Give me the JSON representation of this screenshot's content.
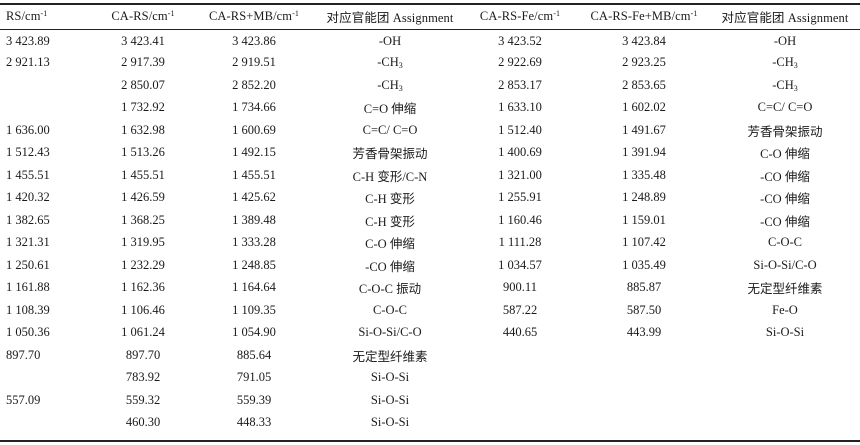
{
  "table": {
    "headers": [
      {
        "base": "RS/cm",
        "sup": "-1"
      },
      {
        "base": "CA-RS/cm",
        "sup": "-1"
      },
      {
        "base": "CA-RS+MB/cm",
        "sup": "-1"
      },
      {
        "base": "对应官能团 Assignment",
        "sup": ""
      },
      {
        "base": "CA-RS-Fe/cm",
        "sup": "-1"
      },
      {
        "base": "CA-RS-Fe+MB/cm",
        "sup": "-1"
      },
      {
        "base": "对应官能团 Assignment",
        "sup": ""
      }
    ],
    "rows": [
      [
        {
          "t": "3 423.89"
        },
        {
          "t": "3 423.41"
        },
        {
          "t": "3 423.86"
        },
        {
          "t": "-OH"
        },
        {
          "t": "3 423.52"
        },
        {
          "t": "3 423.84"
        },
        {
          "t": "-OH"
        }
      ],
      [
        {
          "t": "2 921.13"
        },
        {
          "t": "2 917.39"
        },
        {
          "t": "2 919.51"
        },
        {
          "t": "-CH",
          "sub": "3"
        },
        {
          "t": "2 922.69"
        },
        {
          "t": "2 923.25"
        },
        {
          "t": "-CH",
          "sub": "3"
        }
      ],
      [
        {
          "t": ""
        },
        {
          "t": "2 850.07"
        },
        {
          "t": "2 852.20"
        },
        {
          "t": "-CH",
          "sub": "3"
        },
        {
          "t": "2 853.17"
        },
        {
          "t": "2 853.65"
        },
        {
          "t": "-CH",
          "sub": "3"
        }
      ],
      [
        {
          "t": ""
        },
        {
          "t": "1 732.92"
        },
        {
          "t": "1 734.66"
        },
        {
          "t": "C=O 伸缩"
        },
        {
          "t": "1 633.10"
        },
        {
          "t": "1 602.02"
        },
        {
          "t": "C=C/ C=O"
        }
      ],
      [
        {
          "t": "1 636.00"
        },
        {
          "t": "1 632.98"
        },
        {
          "t": "1 600.69"
        },
        {
          "t": "C=C/ C=O"
        },
        {
          "t": "1 512.40"
        },
        {
          "t": "1 491.67"
        },
        {
          "t": "芳香骨架振动"
        }
      ],
      [
        {
          "t": "1 512.43"
        },
        {
          "t": "1 513.26"
        },
        {
          "t": "1 492.15"
        },
        {
          "t": "芳香骨架振动"
        },
        {
          "t": "1 400.69"
        },
        {
          "t": "1 391.94"
        },
        {
          "t": "C-O 伸缩"
        }
      ],
      [
        {
          "t": "1 455.51"
        },
        {
          "t": "1 455.51"
        },
        {
          "t": "1 455.51"
        },
        {
          "t": "C-H 变形/C-N"
        },
        {
          "t": "1 321.00"
        },
        {
          "t": "1 335.48"
        },
        {
          "t": "-CO 伸缩"
        }
      ],
      [
        {
          "t": "1 420.32"
        },
        {
          "t": "1 426.59"
        },
        {
          "t": "1 425.62"
        },
        {
          "t": "C-H 变形"
        },
        {
          "t": "1 255.91"
        },
        {
          "t": "1 248.89"
        },
        {
          "t": "-CO 伸缩"
        }
      ],
      [
        {
          "t": "1 382.65"
        },
        {
          "t": "1 368.25"
        },
        {
          "t": "1 389.48"
        },
        {
          "t": "C-H 变形"
        },
        {
          "t": "1 160.46"
        },
        {
          "t": "1 159.01"
        },
        {
          "t": "-CO 伸缩"
        }
      ],
      [
        {
          "t": "1 321.31"
        },
        {
          "t": "1 319.95"
        },
        {
          "t": "1 333.28"
        },
        {
          "t": "C-O 伸缩"
        },
        {
          "t": "1 111.28"
        },
        {
          "t": "1 107.42"
        },
        {
          "t": "C-O-C"
        }
      ],
      [
        {
          "t": "1 250.61"
        },
        {
          "t": "1 232.29"
        },
        {
          "t": "1 248.85"
        },
        {
          "t": "-CO 伸缩"
        },
        {
          "t": "1 034.57"
        },
        {
          "t": "1 035.49"
        },
        {
          "t": "Si-O-Si/C-O"
        }
      ],
      [
        {
          "t": "1 161.88"
        },
        {
          "t": "1 162.36"
        },
        {
          "t": "1 164.64"
        },
        {
          "t": "C-O-C 振动"
        },
        {
          "t": "900.11"
        },
        {
          "t": "885.87"
        },
        {
          "t": "无定型纤维素"
        }
      ],
      [
        {
          "t": "1 108.39"
        },
        {
          "t": "1 106.46"
        },
        {
          "t": "1 109.35"
        },
        {
          "t": "C-O-C"
        },
        {
          "t": "587.22"
        },
        {
          "t": "587.50"
        },
        {
          "t": "Fe-O"
        }
      ],
      [
        {
          "t": "1 050.36"
        },
        {
          "t": "1 061.24"
        },
        {
          "t": "1 054.90"
        },
        {
          "t": "Si-O-Si/C-O"
        },
        {
          "t": "440.65"
        },
        {
          "t": "443.99"
        },
        {
          "t": "Si-O-Si"
        }
      ],
      [
        {
          "t": "897.70"
        },
        {
          "t": "897.70"
        },
        {
          "t": "885.64"
        },
        {
          "t": "无定型纤维素"
        },
        {
          "t": ""
        },
        {
          "t": ""
        },
        {
          "t": ""
        }
      ],
      [
        {
          "t": ""
        },
        {
          "t": "783.92"
        },
        {
          "t": "791.05"
        },
        {
          "t": "Si-O-Si"
        },
        {
          "t": ""
        },
        {
          "t": ""
        },
        {
          "t": ""
        }
      ],
      [
        {
          "t": "557.09"
        },
        {
          "t": "559.32"
        },
        {
          "t": "559.39"
        },
        {
          "t": "Si-O-Si"
        },
        {
          "t": ""
        },
        {
          "t": ""
        },
        {
          "t": ""
        }
      ],
      [
        {
          "t": ""
        },
        {
          "t": "460.30"
        },
        {
          "t": "448.33"
        },
        {
          "t": "Si-O-Si"
        },
        {
          "t": ""
        },
        {
          "t": ""
        },
        {
          "t": ""
        }
      ]
    ]
  }
}
